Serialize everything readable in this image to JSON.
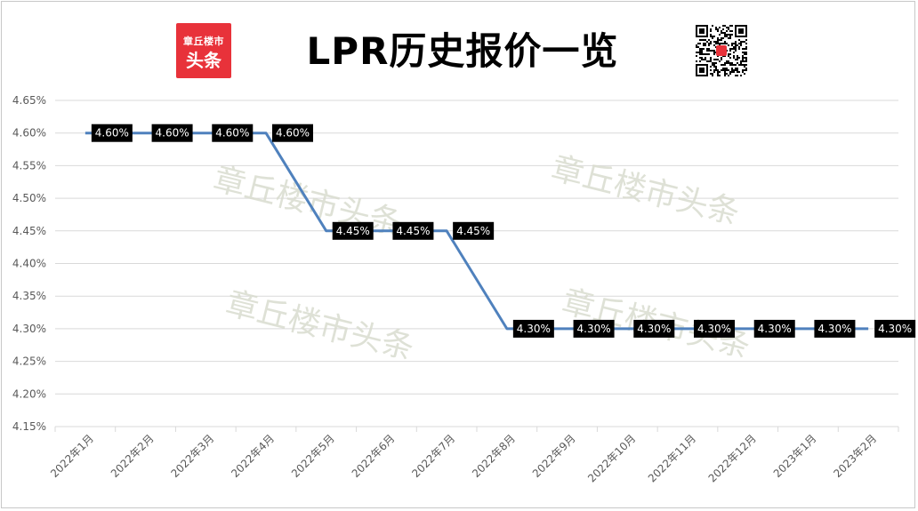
{
  "header": {
    "title": "LPR历史报价一览",
    "logo_line1": "章丘楼市",
    "logo_line2": "头条"
  },
  "watermark": "章丘楼市头条",
  "colors": {
    "line": "#4f81bd",
    "label_bg": "#000000",
    "label_text": "#ffffff",
    "grid": "#d9d9d9",
    "logo_bg": "#e8323a"
  },
  "chart_data": {
    "type": "line",
    "title": "LPR历史报价一览",
    "categories": [
      "2022年1月",
      "2022年2月",
      "2022年3月",
      "2022年4月",
      "2022年5月",
      "2022年6月",
      "2022年7月",
      "2022年8月",
      "2022年9月",
      "2022年10月",
      "2022年11月",
      "2022年12月",
      "2023年1月",
      "2023年2月"
    ],
    "series": [
      {
        "values": [
          4.6,
          4.6,
          4.6,
          4.6,
          4.45,
          4.45,
          4.45,
          4.3,
          4.3,
          4.3,
          4.3,
          4.3,
          4.3,
          4.3
        ]
      }
    ],
    "data_labels": [
      "4.60%",
      "4.60%",
      "4.60%",
      "4.60%",
      "4.45%",
      "4.45%",
      "4.45%",
      "4.30%",
      "4.30%",
      "4.30%",
      "4.30%",
      "4.30%",
      "4.30%",
      "4.30%"
    ],
    "ylim": [
      4.15,
      4.65
    ],
    "yticks": [
      "4.15%",
      "4.20%",
      "4.25%",
      "4.30%",
      "4.35%",
      "4.40%",
      "4.45%",
      "4.50%",
      "4.55%",
      "4.60%",
      "4.65%"
    ],
    "grid": true,
    "legend": "none",
    "xlabel": "",
    "ylabel": ""
  }
}
